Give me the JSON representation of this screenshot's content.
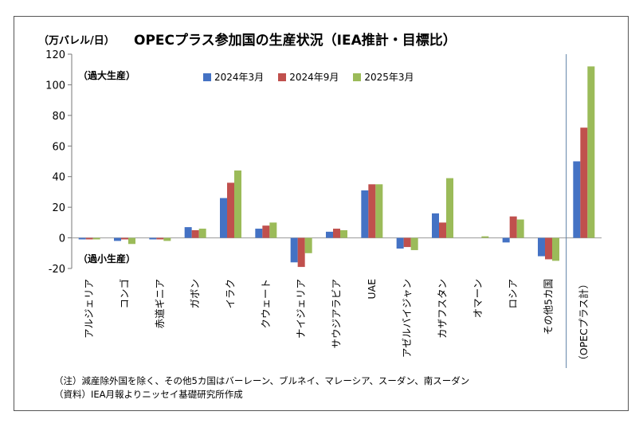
{
  "unit_label": "（万バレル/日）",
  "title": "OPECプラス参加国の生産状況（IEA推計・目標比）",
  "over_label": "（過大生産）",
  "under_label": "（過小生産）",
  "notes": [
    "（注）減産除外国を除く、その他5カ国はバーレーン、ブルネイ、マレーシア、スーダン、南スーダン",
    "（資料）IEA月報よりニッセイ基礎研究所作成"
  ],
  "chart_data": {
    "type": "bar",
    "categories": [
      "アルジェリア",
      "コンゴ",
      "赤道ギニア",
      "ガボン",
      "イラク",
      "クウェート",
      "ナイジェリア",
      "サウジアラビア",
      "UAE",
      "アゼルバイジャン",
      "カザフスタン",
      "オマーン",
      "ロシア",
      "その他5カ国",
      "（OPECプラス計）"
    ],
    "series": [
      {
        "name": "2024年3月",
        "color": "#4472C4",
        "values": [
          -1,
          -2,
          -1,
          7,
          26,
          6,
          -16,
          4,
          31,
          -7,
          16,
          0,
          -3,
          -12,
          50
        ]
      },
      {
        "name": "2024年9月",
        "color": "#C0504D",
        "values": [
          -1,
          -1,
          -1,
          5,
          36,
          8,
          -19,
          6,
          35,
          -6,
          10,
          0,
          14,
          -14,
          72
        ]
      },
      {
        "name": "2025年3月",
        "color": "#9BBB59",
        "values": [
          -1,
          -4,
          -2,
          6,
          44,
          10,
          -10,
          5,
          35,
          -8,
          39,
          1,
          12,
          -15,
          112
        ]
      }
    ],
    "y_ticks": [
      "120",
      "100",
      "80",
      "60",
      "40",
      "20",
      "0",
      "-20"
    ],
    "ylim": [
      -20,
      120
    ],
    "legend_position": "top-center",
    "grid": false
  }
}
